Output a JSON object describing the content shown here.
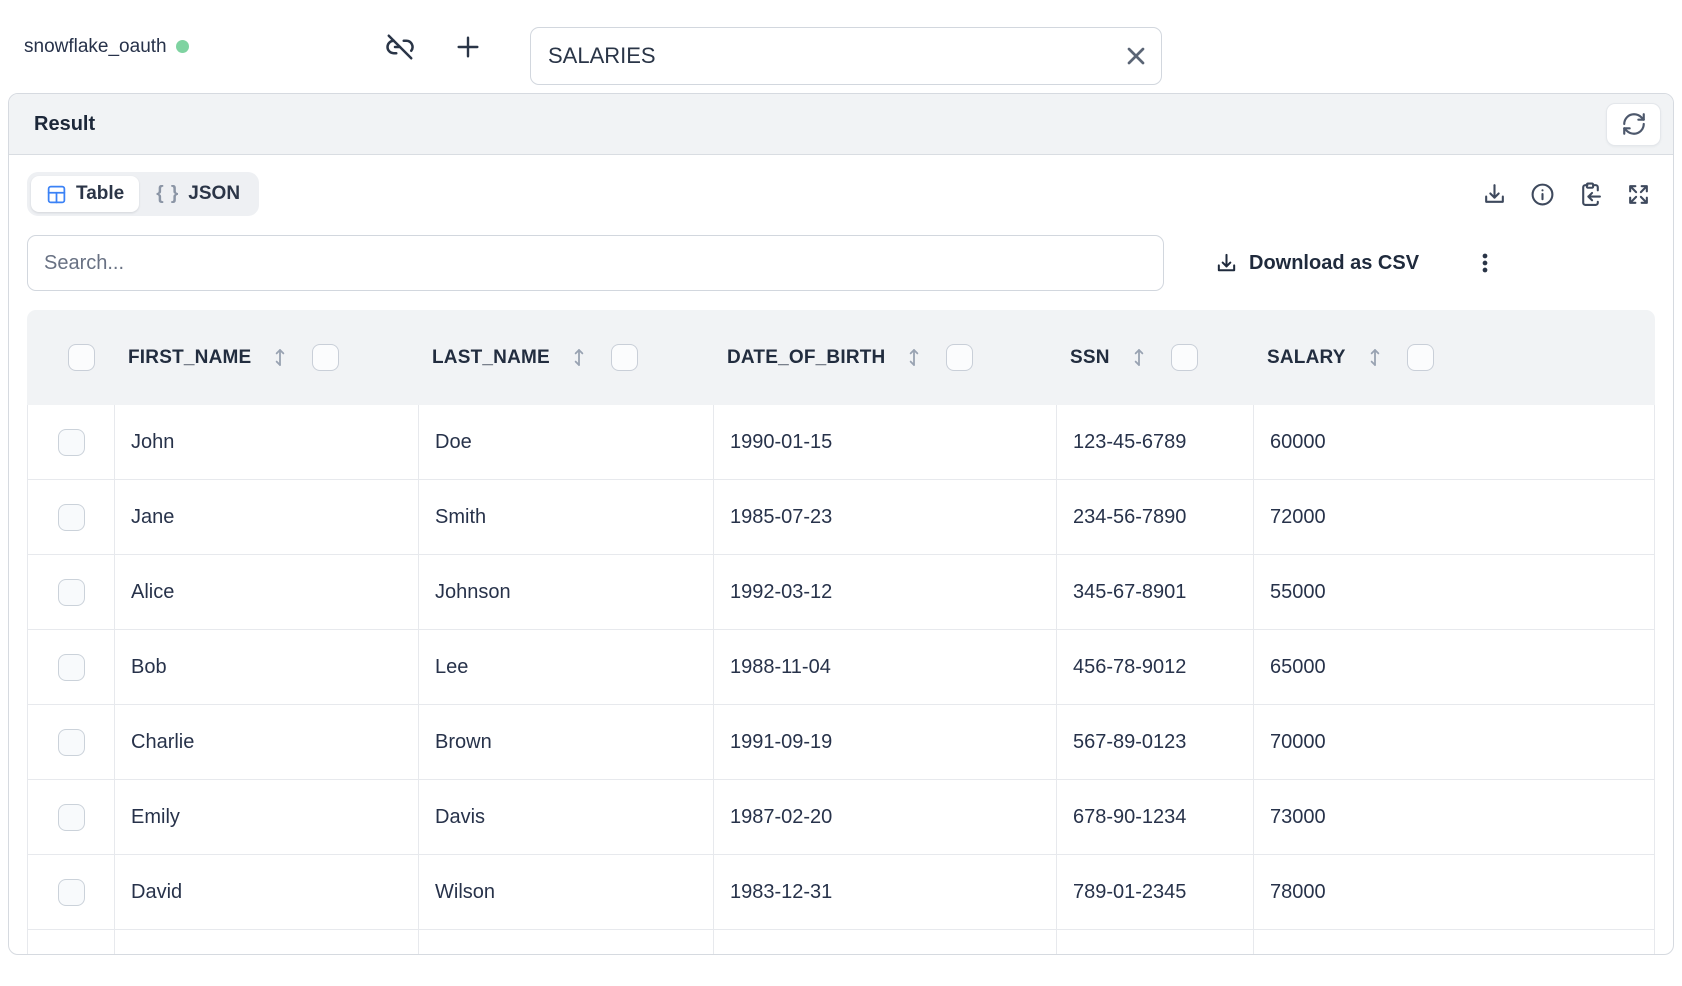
{
  "topbar": {
    "connection_label": "snowflake_oauth",
    "table_input_value": "SALARIES"
  },
  "result_panel": {
    "title": "Result",
    "tabs": [
      {
        "label": "Table",
        "icon": "table-icon",
        "active": true
      },
      {
        "label": "JSON",
        "icon": "braces-icon",
        "icon_text": "{ }",
        "active": false
      }
    ],
    "toolbar_icons": [
      "download-icon",
      "info-icon",
      "clipboard-paste-icon",
      "expand-icon"
    ],
    "search_placeholder": "Search...",
    "download_csv_label": "Download as CSV"
  },
  "table": {
    "columns": [
      "FIRST_NAME",
      "LAST_NAME",
      "DATE_OF_BIRTH",
      "SSN",
      "SALARY"
    ],
    "rows": [
      [
        "John",
        "Doe",
        "1990-01-15",
        "123-45-6789",
        "60000"
      ],
      [
        "Jane",
        "Smith",
        "1985-07-23",
        "234-56-7890",
        "72000"
      ],
      [
        "Alice",
        "Johnson",
        "1992-03-12",
        "345-67-8901",
        "55000"
      ],
      [
        "Bob",
        "Lee",
        "1988-11-04",
        "456-78-9012",
        "65000"
      ],
      [
        "Charlie",
        "Brown",
        "1991-09-19",
        "567-89-0123",
        "70000"
      ],
      [
        "Emily",
        "Davis",
        "1987-02-20",
        "678-90-1234",
        "73000"
      ],
      [
        "David",
        "Wilson",
        "1983-12-31",
        "789-01-2345",
        "78000"
      ]
    ]
  },
  "colors": {
    "status_green": "#7fd3a1",
    "accent_blue": "#3b82f6",
    "dark_text": "#27324a",
    "header_bg": "#f1f3f5"
  }
}
